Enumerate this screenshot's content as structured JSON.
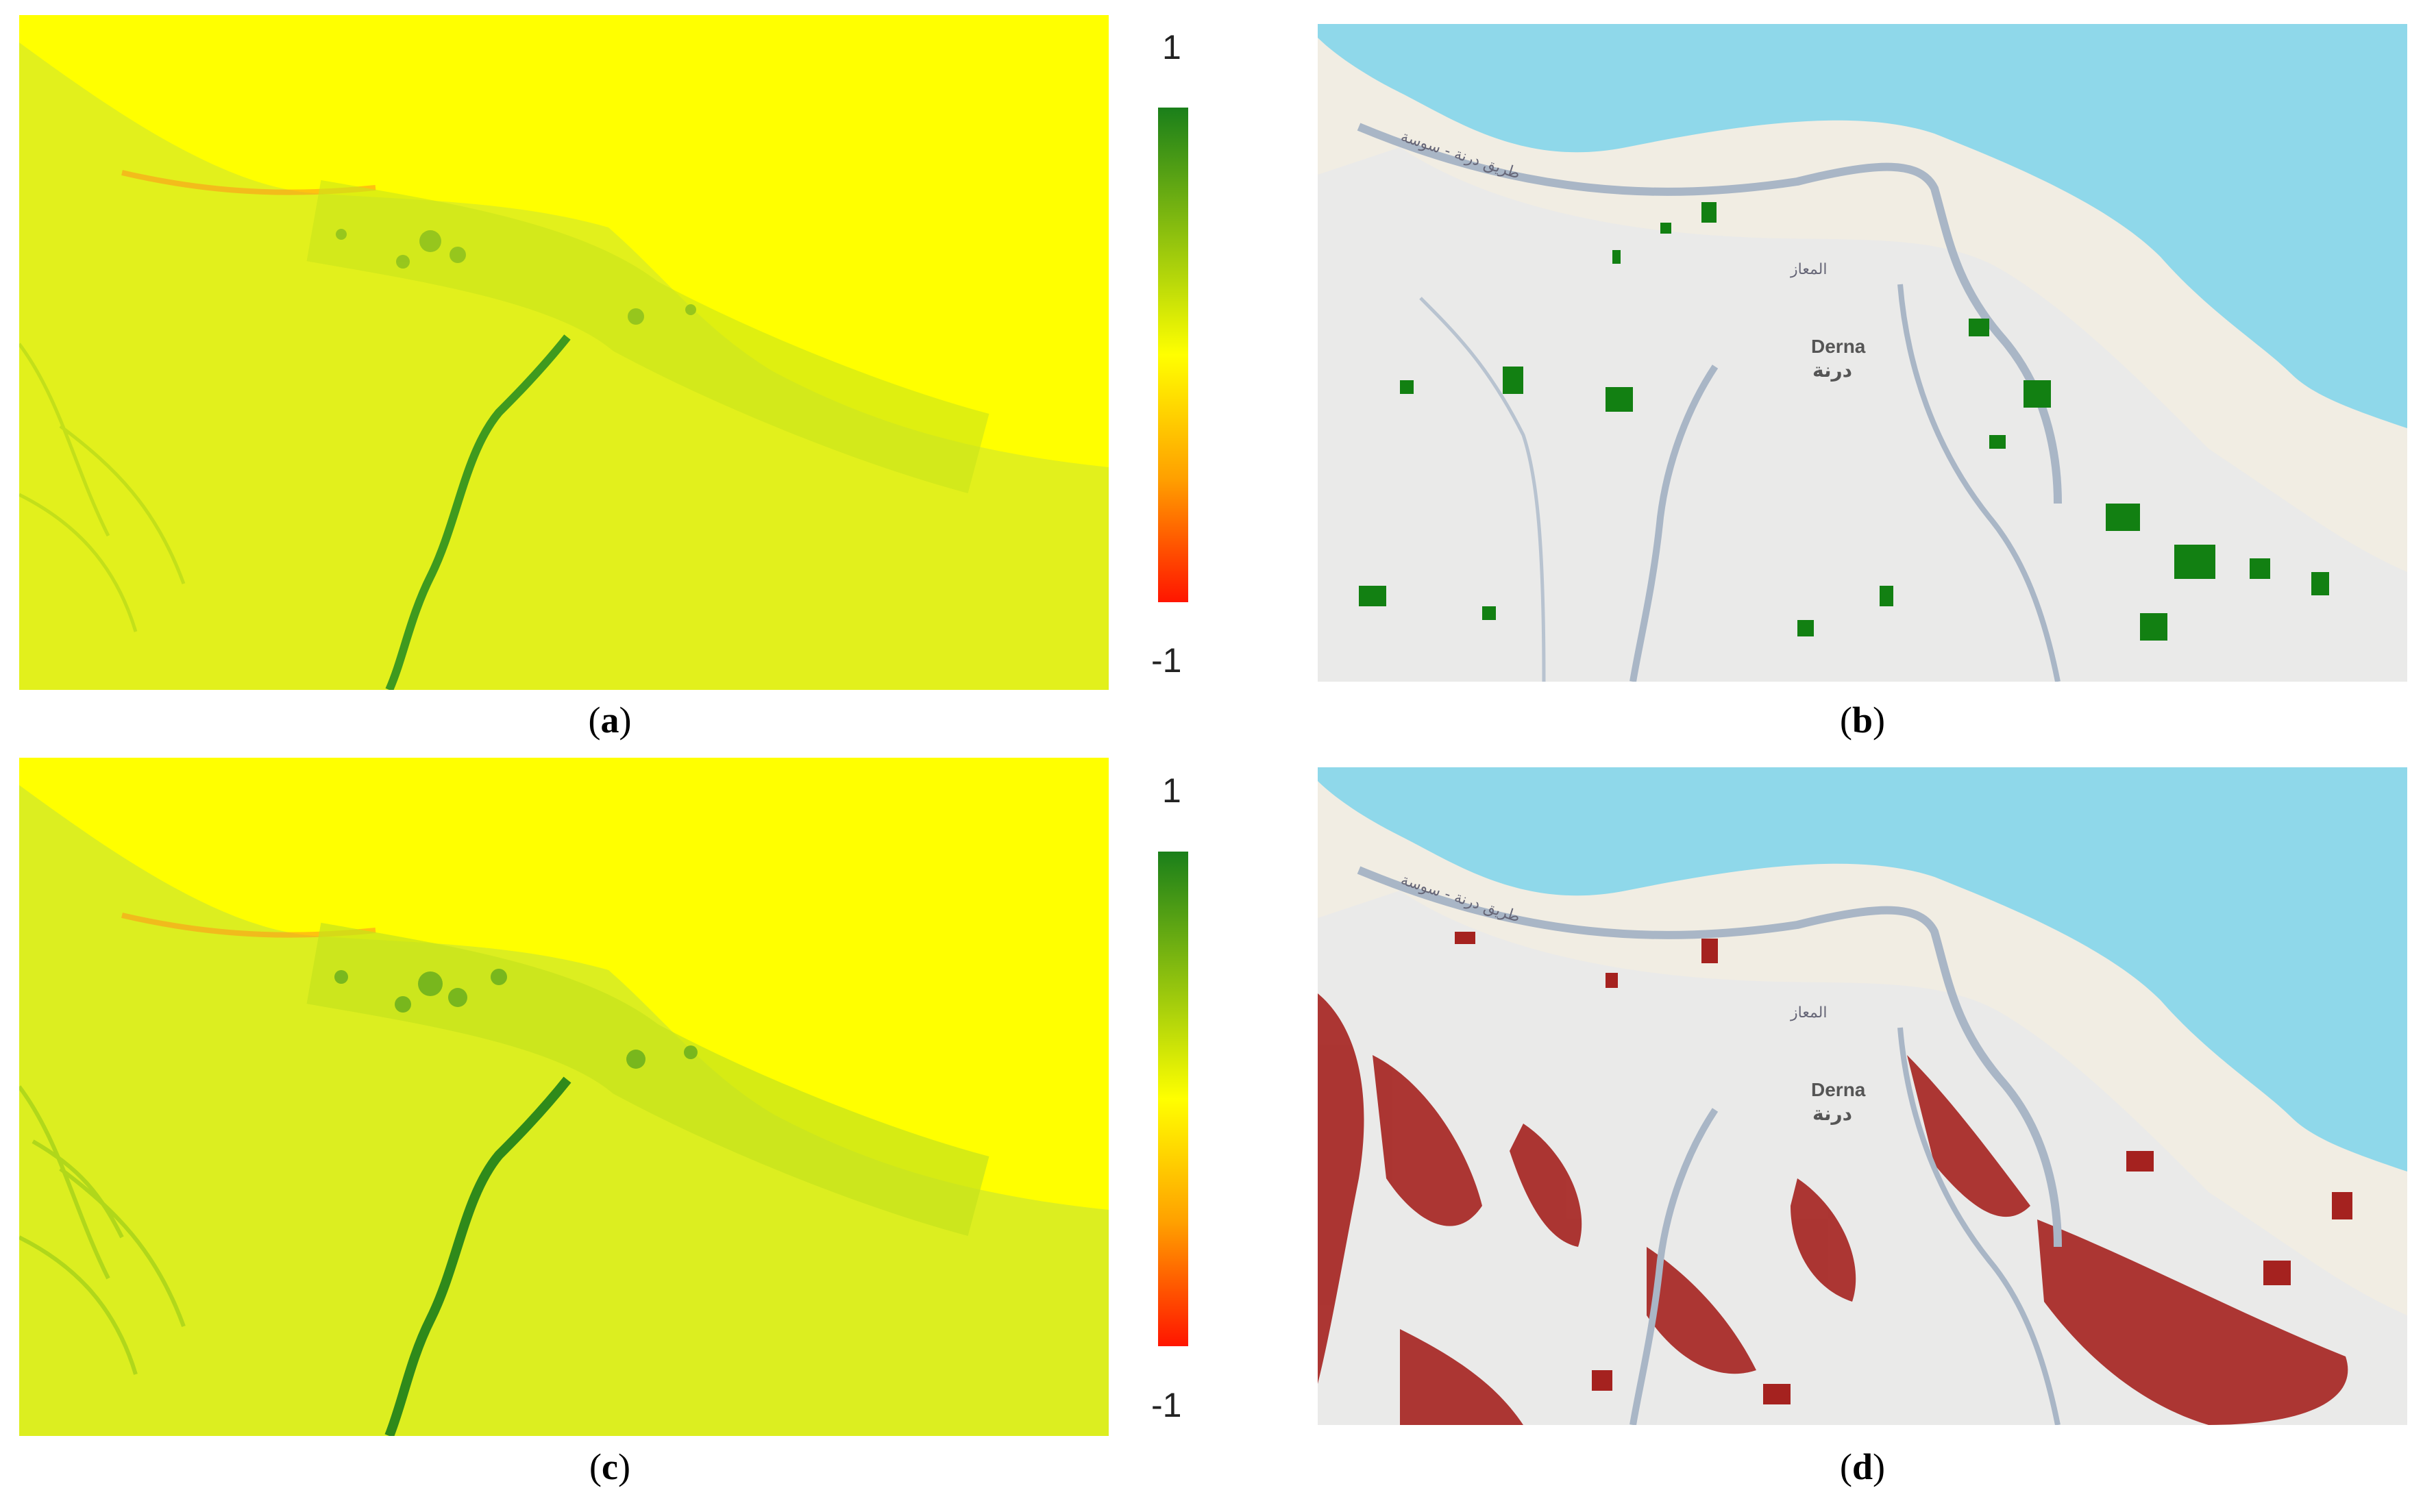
{
  "figure": {
    "panels": [
      {
        "id": "a",
        "caption_letter": "a",
        "type": "index-raster"
      },
      {
        "id": "b",
        "caption_letter": "b",
        "type": "map-overlay",
        "overlay_color": "#128012"
      },
      {
        "id": "c",
        "caption_letter": "c",
        "type": "index-raster"
      },
      {
        "id": "d",
        "caption_letter": "d",
        "type": "map-overlay",
        "overlay_color": "#a5221f"
      }
    ],
    "colorbar_top": {
      "max_label": "1",
      "min_label": "-1"
    },
    "colorbar_bottom": {
      "max_label": "1",
      "min_label": "-1"
    },
    "colorbar_colors": [
      "#1a7f1a",
      "#b7d80a",
      "#ffff00",
      "#ffa000",
      "#ff1500"
    ]
  },
  "map_labels": {
    "city_latin": "Derna",
    "city_arabic": "درنة",
    "district_arabic": "المعاز",
    "road_arabic": "طريق درنة - سوسة"
  },
  "colors": {
    "sea": "#8fd8ea",
    "land": "#f1ede3",
    "road": "#a9b6c6",
    "urban": "#dde3ea",
    "index_bg": "#ffff00",
    "index_land": "#e4f21a",
    "index_veg": "#3f9a1e"
  }
}
